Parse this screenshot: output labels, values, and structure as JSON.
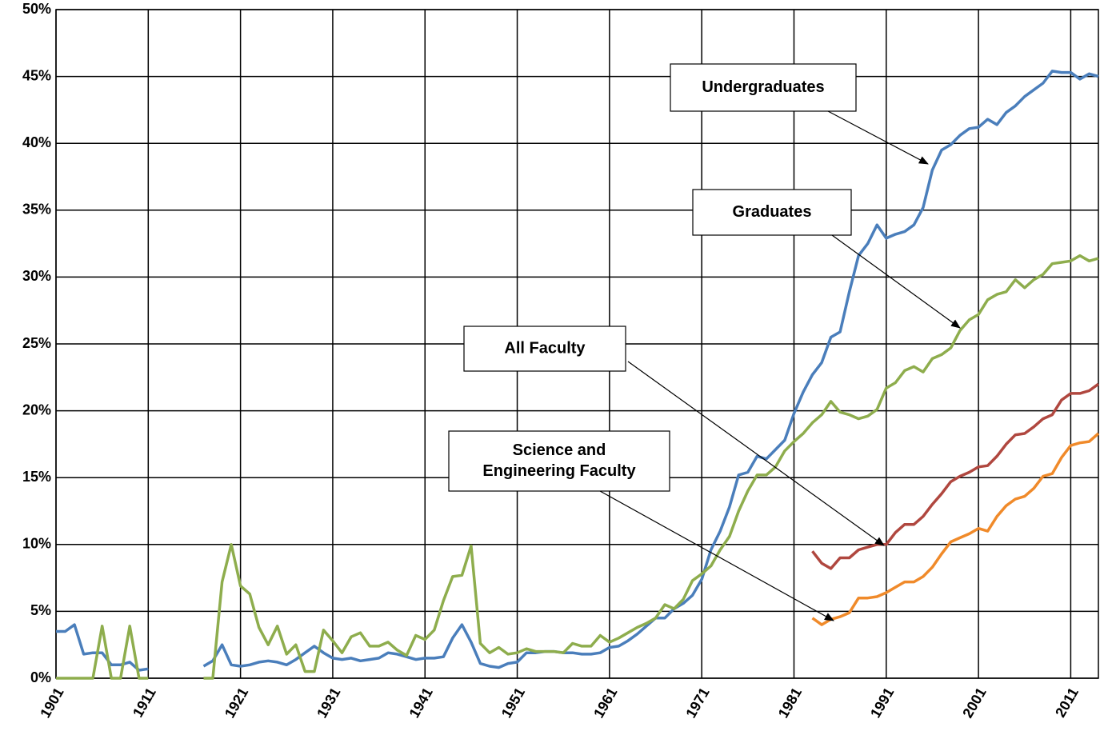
{
  "chart_data": {
    "type": "line",
    "x": [
      1901,
      1902,
      1903,
      1904,
      1905,
      1906,
      1907,
      1908,
      1909,
      1910,
      1911,
      1912,
      1913,
      1914,
      1915,
      1916,
      1917,
      1918,
      1919,
      1920,
      1921,
      1922,
      1923,
      1924,
      1925,
      1926,
      1927,
      1928,
      1929,
      1930,
      1931,
      1932,
      1933,
      1934,
      1935,
      1936,
      1937,
      1938,
      1939,
      1940,
      1941,
      1942,
      1943,
      1944,
      1945,
      1946,
      1947,
      1948,
      1949,
      1950,
      1951,
      1952,
      1953,
      1954,
      1955,
      1956,
      1957,
      1958,
      1959,
      1960,
      1961,
      1962,
      1963,
      1964,
      1965,
      1966,
      1967,
      1968,
      1969,
      1970,
      1971,
      1972,
      1973,
      1974,
      1975,
      1976,
      1977,
      1978,
      1979,
      1980,
      1981,
      1982,
      1983,
      1984,
      1985,
      1986,
      1987,
      1988,
      1989,
      1990,
      1991,
      1992,
      1993,
      1994,
      1995,
      1996,
      1997,
      1998,
      1999,
      2000,
      2001,
      2002,
      2003,
      2004,
      2005,
      2006,
      2007,
      2008,
      2009,
      2010,
      2011,
      2012,
      2013,
      2014
    ],
    "series": [
      {
        "name": "Undergraduates",
        "color": "#4a7ebb",
        "values": [
          3.5,
          3.5,
          4.0,
          1.8,
          1.9,
          1.9,
          1.0,
          1.0,
          1.2,
          0.6,
          0.7,
          null,
          null,
          null,
          null,
          null,
          0.9,
          1.3,
          2.5,
          1.0,
          0.9,
          1.0,
          1.2,
          1.3,
          1.2,
          1.0,
          1.4,
          1.9,
          2.4,
          1.9,
          1.5,
          1.4,
          1.5,
          1.3,
          1.4,
          1.5,
          1.9,
          1.8,
          1.6,
          1.4,
          1.5,
          1.5,
          1.6,
          3.0,
          4.0,
          2.7,
          1.1,
          0.9,
          0.8,
          1.1,
          1.2,
          1.9,
          1.9,
          2.0,
          2.0,
          1.9,
          1.9,
          1.8,
          1.8,
          1.9,
          2.3,
          2.4,
          2.8,
          3.3,
          3.9,
          4.5,
          4.5,
          5.2,
          5.6,
          6.2,
          7.4,
          9.6,
          11.0,
          12.8,
          15.2,
          15.4,
          16.6,
          16.4,
          17.1,
          17.8,
          19.8,
          21.4,
          22.7,
          23.6,
          25.5,
          25.9,
          28.9,
          31.6,
          32.5,
          33.9,
          32.9,
          33.2,
          33.4,
          33.9,
          35.2,
          38.0,
          39.5,
          39.9,
          40.6,
          41.1,
          41.2,
          41.8,
          41.4,
          42.3,
          42.8,
          43.5,
          44.0,
          44.5,
          45.4,
          45.3,
          45.3,
          44.8,
          45.2,
          45.0
        ]
      },
      {
        "name": "Graduates",
        "color": "#8ead4d",
        "values": [
          0,
          0,
          0,
          0,
          0,
          3.9,
          0,
          0,
          3.9,
          0,
          0,
          null,
          null,
          null,
          null,
          null,
          0,
          0,
          7.2,
          10.0,
          6.9,
          6.3,
          3.8,
          2.5,
          3.9,
          1.8,
          2.5,
          0.5,
          0.5,
          3.6,
          2.8,
          1.9,
          3.1,
          3.4,
          2.4,
          2.4,
          2.7,
          2.1,
          1.7,
          3.2,
          2.9,
          3.6,
          5.8,
          7.6,
          7.7,
          9.9,
          2.6,
          1.9,
          2.3,
          1.8,
          1.9,
          2.2,
          2.0,
          2.0,
          2.0,
          1.9,
          2.6,
          2.4,
          2.4,
          3.2,
          2.7,
          3.0,
          3.4,
          3.8,
          4.1,
          4.5,
          5.5,
          5.2,
          5.9,
          7.3,
          7.8,
          8.4,
          9.6,
          10.6,
          12.5,
          14.0,
          15.2,
          15.2,
          15.8,
          17.0,
          17.7,
          18.3,
          19.1,
          19.7,
          20.7,
          19.9,
          19.7,
          19.4,
          19.6,
          20.1,
          21.7,
          22.1,
          23.0,
          23.3,
          22.9,
          23.9,
          24.2,
          24.7,
          26.0,
          26.8,
          27.2,
          28.3,
          28.7,
          28.9,
          29.8,
          29.2,
          29.8,
          30.2,
          31.0,
          31.1,
          31.2,
          31.6,
          31.2,
          31.4
        ]
      },
      {
        "name": "All Faculty",
        "color": "#b0473f",
        "values": [
          null,
          null,
          null,
          null,
          null,
          null,
          null,
          null,
          null,
          null,
          null,
          null,
          null,
          null,
          null,
          null,
          null,
          null,
          null,
          null,
          null,
          null,
          null,
          null,
          null,
          null,
          null,
          null,
          null,
          null,
          null,
          null,
          null,
          null,
          null,
          null,
          null,
          null,
          null,
          null,
          null,
          null,
          null,
          null,
          null,
          null,
          null,
          null,
          null,
          null,
          null,
          null,
          null,
          null,
          null,
          null,
          null,
          null,
          null,
          null,
          null,
          null,
          null,
          null,
          null,
          null,
          null,
          null,
          null,
          null,
          null,
          null,
          null,
          null,
          null,
          null,
          null,
          null,
          null,
          null,
          null,
          null,
          9.5,
          8.6,
          8.2,
          9.0,
          9.0,
          9.6,
          9.8,
          10.0,
          10.0,
          10.9,
          11.5,
          11.5,
          12.1,
          13.0,
          13.8,
          14.7,
          15.1,
          15.4,
          15.8,
          15.9,
          16.6,
          17.5,
          18.2,
          18.3,
          18.8,
          19.4,
          19.7,
          20.8,
          21.3,
          21.3,
          21.5,
          22.0
        ]
      },
      {
        "name": [
          "Science and",
          "Engineering Faculty"
        ],
        "color": "#f08a2a",
        "values": [
          null,
          null,
          null,
          null,
          null,
          null,
          null,
          null,
          null,
          null,
          null,
          null,
          null,
          null,
          null,
          null,
          null,
          null,
          null,
          null,
          null,
          null,
          null,
          null,
          null,
          null,
          null,
          null,
          null,
          null,
          null,
          null,
          null,
          null,
          null,
          null,
          null,
          null,
          null,
          null,
          null,
          null,
          null,
          null,
          null,
          null,
          null,
          null,
          null,
          null,
          null,
          null,
          null,
          null,
          null,
          null,
          null,
          null,
          null,
          null,
          null,
          null,
          null,
          null,
          null,
          null,
          null,
          null,
          null,
          null,
          null,
          null,
          null,
          null,
          null,
          null,
          null,
          null,
          null,
          null,
          null,
          null,
          4.5,
          4.0,
          4.4,
          4.6,
          4.9,
          6.0,
          6.0,
          6.1,
          6.4,
          6.8,
          7.2,
          7.2,
          7.6,
          8.3,
          9.3,
          10.2,
          10.5,
          10.8,
          11.2,
          11.0,
          12.1,
          12.9,
          13.4,
          13.6,
          14.2,
          15.1,
          15.3,
          16.5,
          17.4,
          17.6,
          17.7,
          18.3
        ]
      }
    ],
    "xlim": [
      1901,
      2014
    ],
    "xticks": [
      1901,
      1911,
      1921,
      1931,
      1941,
      1951,
      1961,
      1971,
      1981,
      1991,
      2001,
      2011
    ],
    "ylim": [
      0,
      50
    ],
    "yticks": [
      {
        "value": 0,
        "label": "0%"
      },
      {
        "value": 5,
        "label": "5%"
      },
      {
        "value": 10,
        "label": "10%"
      },
      {
        "value": 15,
        "label": "15%"
      },
      {
        "value": 20,
        "label": "20%"
      },
      {
        "value": 25,
        "label": "25%"
      },
      {
        "value": 30,
        "label": "30%"
      },
      {
        "value": 35,
        "label": "35%"
      },
      {
        "value": 40,
        "label": "40%"
      },
      {
        "value": 45,
        "label": "45%"
      },
      {
        "value": 50,
        "label": "50%"
      }
    ],
    "grid": true
  }
}
